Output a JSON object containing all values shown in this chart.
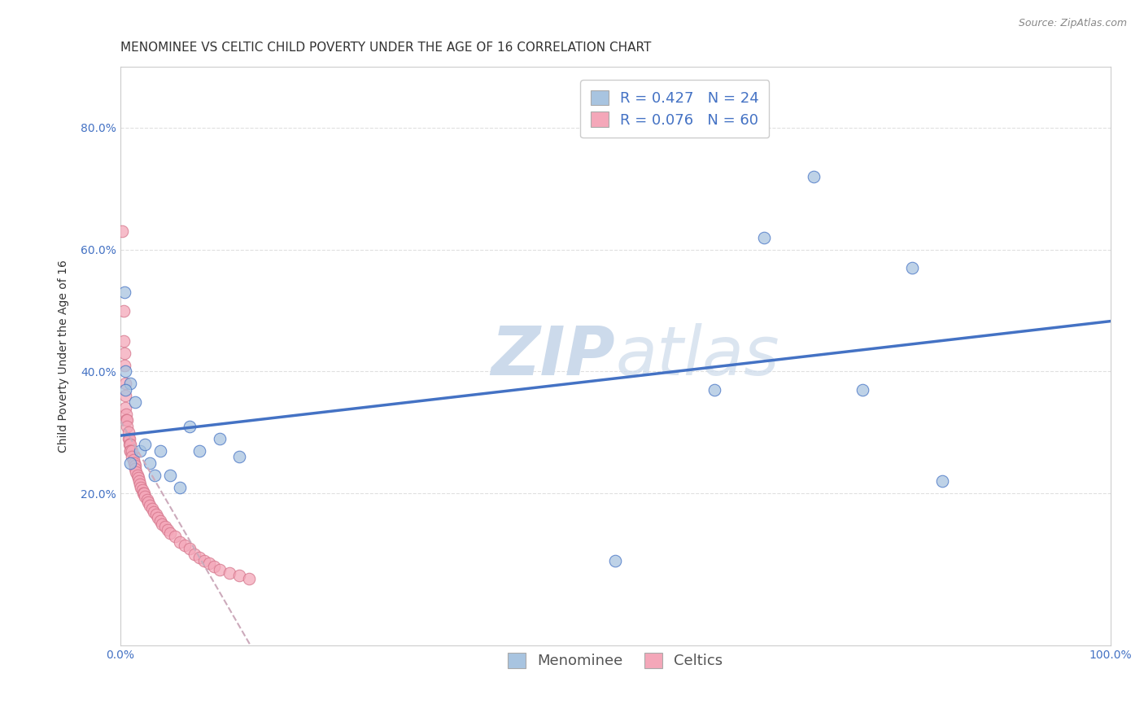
{
  "title": "MENOMINEE VS CELTIC CHILD POVERTY UNDER THE AGE OF 16 CORRELATION CHART",
  "source": "Source: ZipAtlas.com",
  "ylabel": "Child Poverty Under the Age of 16",
  "xlim": [
    0.0,
    1.0
  ],
  "ylim": [
    -0.05,
    0.9
  ],
  "xticks": [
    0.0,
    0.2,
    0.4,
    0.6,
    0.8,
    1.0
  ],
  "xticklabels": [
    "0.0%",
    "",
    "",
    "",
    "",
    "100.0%"
  ],
  "yticks": [
    0.2,
    0.4,
    0.6,
    0.8
  ],
  "yticklabels": [
    "20.0%",
    "40.0%",
    "60.0%",
    "80.0%"
  ],
  "menominee_color": "#a8c4e0",
  "celtic_color": "#f4a7b9",
  "menominee_line_color": "#4472c4",
  "celtic_line_color": "#d4748a",
  "r_menominee": 0.427,
  "n_menominee": 24,
  "r_celtic": 0.076,
  "n_celtic": 60,
  "menominee_x": [
    0.004,
    0.005,
    0.01,
    0.015,
    0.02,
    0.025,
    0.03,
    0.035,
    0.04,
    0.05,
    0.06,
    0.07,
    0.08,
    0.1,
    0.12,
    0.5,
    0.6,
    0.65,
    0.7,
    0.75,
    0.8,
    0.83,
    0.005,
    0.01
  ],
  "menominee_y": [
    0.53,
    0.4,
    0.38,
    0.35,
    0.27,
    0.28,
    0.25,
    0.23,
    0.27,
    0.23,
    0.21,
    0.31,
    0.27,
    0.29,
    0.26,
    0.09,
    0.37,
    0.62,
    0.72,
    0.37,
    0.57,
    0.22,
    0.37,
    0.25
  ],
  "celtic_x": [
    0.002,
    0.003,
    0.003,
    0.004,
    0.004,
    0.005,
    0.005,
    0.005,
    0.006,
    0.006,
    0.007,
    0.007,
    0.008,
    0.008,
    0.009,
    0.009,
    0.01,
    0.01,
    0.01,
    0.012,
    0.012,
    0.013,
    0.014,
    0.015,
    0.015,
    0.016,
    0.017,
    0.018,
    0.019,
    0.02,
    0.021,
    0.022,
    0.023,
    0.024,
    0.025,
    0.027,
    0.028,
    0.03,
    0.032,
    0.034,
    0.036,
    0.038,
    0.04,
    0.042,
    0.045,
    0.048,
    0.05,
    0.055,
    0.06,
    0.065,
    0.07,
    0.075,
    0.08,
    0.085,
    0.09,
    0.095,
    0.1,
    0.11,
    0.12,
    0.13
  ],
  "celtic_y": [
    0.63,
    0.5,
    0.45,
    0.43,
    0.41,
    0.38,
    0.36,
    0.34,
    0.33,
    0.32,
    0.32,
    0.31,
    0.3,
    0.29,
    0.29,
    0.28,
    0.28,
    0.27,
    0.27,
    0.27,
    0.26,
    0.255,
    0.25,
    0.245,
    0.24,
    0.235,
    0.23,
    0.225,
    0.22,
    0.215,
    0.21,
    0.205,
    0.2,
    0.2,
    0.195,
    0.19,
    0.185,
    0.18,
    0.175,
    0.17,
    0.165,
    0.16,
    0.155,
    0.15,
    0.145,
    0.14,
    0.135,
    0.13,
    0.12,
    0.115,
    0.11,
    0.1,
    0.095,
    0.09,
    0.085,
    0.08,
    0.075,
    0.07,
    0.065,
    0.06
  ],
  "background_color": "#ffffff",
  "grid_color": "#e0e0e0",
  "watermark_left": "ZIP",
  "watermark_right": "atlas",
  "watermark_color": "#ccdaeb",
  "title_fontsize": 11,
  "axis_label_fontsize": 10,
  "tick_fontsize": 10,
  "legend_fontsize": 13
}
